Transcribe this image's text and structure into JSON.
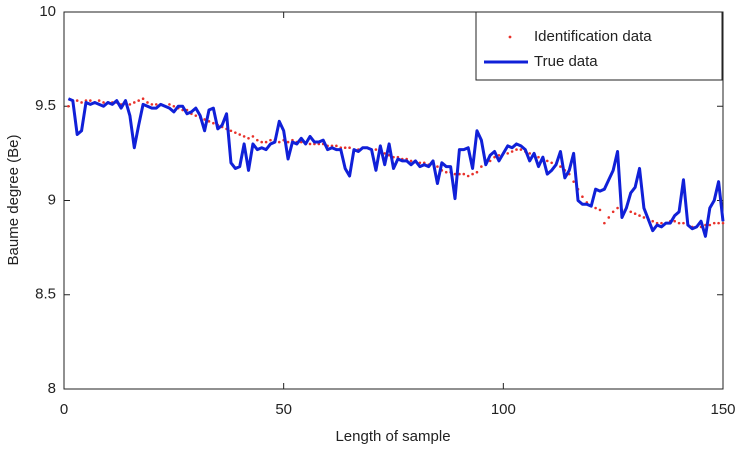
{
  "chart_data": {
    "type": "line",
    "x_label": "Length of sample",
    "y_label": "Baume degree  (Be)",
    "x": [
      1,
      2,
      3,
      4,
      5,
      6,
      7,
      8,
      9,
      10,
      11,
      12,
      13,
      14,
      15,
      16,
      17,
      18,
      19,
      20,
      21,
      22,
      23,
      24,
      25,
      26,
      27,
      28,
      29,
      30,
      31,
      32,
      33,
      34,
      35,
      36,
      37,
      38,
      39,
      40,
      41,
      42,
      43,
      44,
      45,
      46,
      47,
      48,
      49,
      50,
      51,
      52,
      53,
      54,
      55,
      56,
      57,
      58,
      59,
      60,
      61,
      62,
      63,
      64,
      65,
      66,
      67,
      68,
      69,
      70,
      71,
      72,
      73,
      74,
      75,
      76,
      77,
      78,
      79,
      80,
      81,
      82,
      83,
      84,
      85,
      86,
      87,
      88,
      89,
      90,
      91,
      92,
      93,
      94,
      95,
      96,
      97,
      98,
      99,
      100,
      101,
      102,
      103,
      104,
      105,
      106,
      107,
      108,
      109,
      110,
      111,
      112,
      113,
      114,
      115,
      116,
      117,
      118,
      119,
      120,
      121,
      122,
      123,
      124,
      125,
      126,
      127,
      128,
      129,
      130,
      131,
      132,
      133,
      134,
      135,
      136,
      137,
      138,
      139,
      140,
      141,
      142,
      143,
      144,
      145,
      146,
      147,
      148,
      149,
      150
    ],
    "series": [
      {
        "name": "Identification data",
        "color": "#e8312a",
        "style": "dotted",
        "values": [
          9.5,
          9.53,
          9.53,
          9.52,
          9.53,
          9.53,
          9.52,
          9.53,
          9.52,
          9.52,
          9.52,
          9.52,
          9.51,
          9.52,
          9.51,
          9.52,
          9.53,
          9.54,
          9.52,
          9.51,
          9.51,
          9.51,
          9.5,
          9.51,
          9.5,
          9.49,
          9.48,
          9.48,
          9.46,
          9.45,
          9.44,
          9.43,
          9.42,
          9.41,
          9.4,
          9.39,
          9.38,
          9.37,
          9.36,
          9.35,
          9.34,
          9.33,
          9.34,
          9.32,
          9.31,
          9.31,
          9.32,
          9.32,
          9.31,
          9.32,
          9.31,
          9.32,
          9.31,
          9.31,
          9.3,
          9.3,
          9.3,
          9.3,
          9.3,
          9.29,
          9.29,
          9.29,
          9.28,
          9.28,
          9.28,
          9.27,
          9.27,
          9.28,
          9.28,
          9.27,
          9.27,
          9.26,
          9.25,
          9.24,
          9.23,
          9.23,
          9.22,
          9.22,
          9.21,
          9.21,
          9.2,
          9.2,
          9.19,
          9.21,
          9.18,
          9.16,
          9.15,
          9.15,
          9.14,
          9.14,
          9.14,
          9.13,
          9.14,
          9.15,
          9.18,
          9.2,
          9.21,
          9.23,
          9.24,
          9.25,
          9.25,
          9.26,
          9.27,
          9.27,
          9.26,
          9.25,
          9.24,
          9.23,
          9.22,
          9.21,
          9.2,
          9.19,
          9.18,
          9.16,
          9.14,
          9.1,
          9.06,
          9.02,
          8.99,
          8.97,
          8.96,
          8.95,
          8.88,
          8.91,
          8.94,
          8.96,
          8.95,
          8.96,
          8.94,
          8.93,
          8.92,
          8.91,
          8.9,
          8.89,
          8.88,
          8.88,
          8.88,
          8.89,
          8.89,
          8.88,
          8.88,
          8.87,
          8.86,
          8.86,
          8.86,
          8.87,
          8.87,
          8.88,
          8.88,
          8.88
        ]
      },
      {
        "name": "True data",
        "color": "#1020d8",
        "style": "solid",
        "values": [
          9.54,
          9.53,
          9.35,
          9.37,
          9.52,
          9.51,
          9.52,
          9.51,
          9.5,
          9.52,
          9.51,
          9.53,
          9.49,
          9.53,
          9.45,
          9.28,
          9.4,
          9.51,
          9.5,
          9.49,
          9.49,
          9.51,
          9.5,
          9.49,
          9.47,
          9.5,
          9.5,
          9.46,
          9.47,
          9.49,
          9.45,
          9.37,
          9.48,
          9.49,
          9.38,
          9.4,
          9.46,
          9.2,
          9.17,
          9.18,
          9.3,
          9.16,
          9.3,
          9.27,
          9.28,
          9.27,
          9.3,
          9.31,
          9.42,
          9.37,
          9.22,
          9.31,
          9.3,
          9.33,
          9.3,
          9.34,
          9.31,
          9.31,
          9.32,
          9.27,
          9.28,
          9.27,
          9.27,
          9.17,
          9.13,
          9.27,
          9.26,
          9.28,
          9.28,
          9.27,
          9.16,
          9.29,
          9.19,
          9.3,
          9.17,
          9.22,
          9.21,
          9.21,
          9.19,
          9.21,
          9.18,
          9.19,
          9.18,
          9.21,
          9.09,
          9.2,
          9.18,
          9.18,
          9.01,
          9.27,
          9.27,
          9.28,
          9.17,
          9.37,
          9.32,
          9.19,
          9.24,
          9.26,
          9.21,
          9.25,
          9.29,
          9.28,
          9.3,
          9.29,
          9.27,
          9.21,
          9.25,
          9.18,
          9.23,
          9.14,
          9.16,
          9.19,
          9.26,
          9.12,
          9.16,
          9.25,
          9.0,
          8.98,
          8.98,
          8.97,
          9.06,
          9.05,
          9.06,
          9.11,
          9.16,
          9.26,
          8.91,
          8.96,
          9.04,
          9.07,
          9.17,
          8.96,
          8.9,
          8.84,
          8.87,
          8.86,
          8.88,
          8.88,
          8.92,
          8.94,
          9.11,
          8.87,
          8.85,
          8.86,
          8.89,
          8.81,
          8.96,
          9.0,
          9.1,
          8.89
        ]
      }
    ],
    "xlim": [
      0,
      150
    ],
    "xticks": [
      0,
      50,
      100,
      150
    ],
    "ylim": [
      8,
      10
    ],
    "yticks": [
      8,
      8.5,
      9,
      9.5,
      10
    ],
    "grid": false,
    "legend": "top-right"
  }
}
